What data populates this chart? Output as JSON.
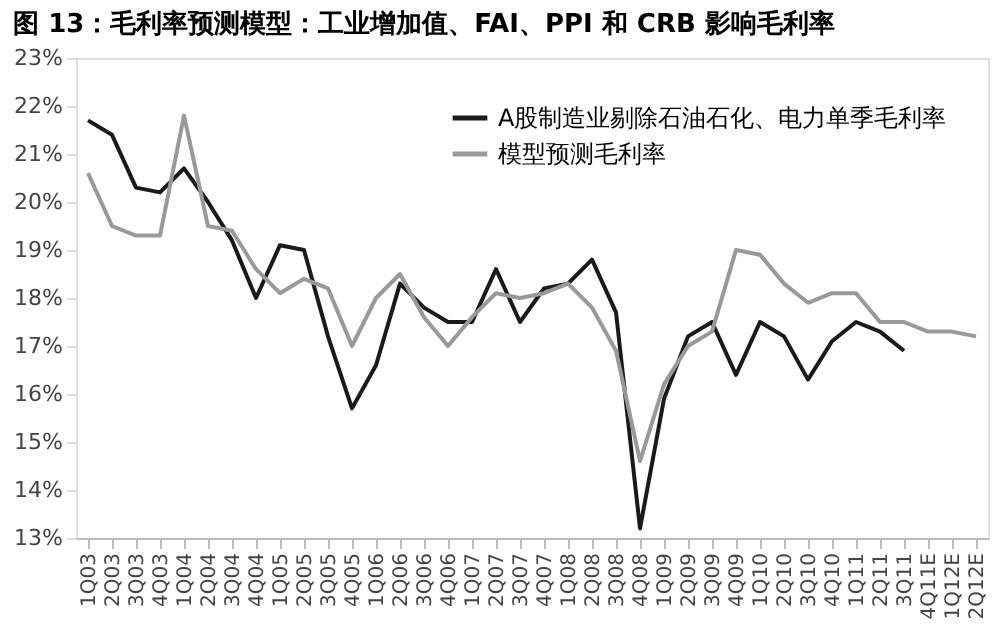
{
  "chart_data": {
    "type": "line",
    "title": "图 13：毛利率预测模型：工业增加值、FAI、PPI 和 CRB 影响毛利率",
    "categories": [
      "1Q03",
      "2Q03",
      "3Q03",
      "4Q03",
      "1Q04",
      "2Q04",
      "3Q04",
      "4Q04",
      "1Q05",
      "2Q05",
      "3Q05",
      "4Q05",
      "1Q06",
      "2Q06",
      "3Q06",
      "4Q06",
      "1Q07",
      "2Q07",
      "3Q07",
      "4Q07",
      "1Q08",
      "2Q08",
      "3Q08",
      "4Q08",
      "1Q09",
      "2Q09",
      "3Q09",
      "4Q09",
      "1Q10",
      "2Q10",
      "3Q10",
      "4Q10",
      "1Q11",
      "2Q11",
      "3Q11",
      "4Q11E",
      "1Q12E",
      "2Q12E"
    ],
    "series": [
      {
        "name": "A股制造业剔除石油石化、电力单季毛利率",
        "color": "#1a1a1a",
        "values": [
          21.7,
          21.4,
          20.3,
          20.2,
          20.7,
          20.0,
          19.2,
          18.0,
          19.1,
          19.0,
          17.2,
          15.7,
          16.6,
          18.3,
          17.8,
          17.5,
          17.5,
          18.6,
          17.5,
          18.2,
          18.3,
          18.8,
          17.7,
          13.2,
          15.9,
          17.2,
          17.5,
          16.4,
          17.5,
          17.2,
          16.3,
          17.1,
          17.5,
          17.3,
          16.9,
          null,
          null,
          null
        ]
      },
      {
        "name": "模型预测毛利率",
        "color": "#999999",
        "values": [
          20.6,
          19.5,
          19.3,
          19.3,
          21.8,
          19.5,
          19.4,
          18.6,
          18.1,
          18.4,
          18.2,
          17.0,
          18.0,
          18.5,
          17.6,
          17.0,
          17.6,
          18.1,
          18.0,
          18.1,
          18.3,
          17.8,
          16.9,
          14.6,
          16.2,
          17.0,
          17.3,
          19.0,
          18.9,
          18.3,
          17.9,
          18.1,
          18.1,
          17.5,
          17.5,
          17.3,
          17.3,
          17.2
        ]
      }
    ],
    "ylim": [
      13,
      23
    ],
    "yticks": [
      {
        "value": 13,
        "label": "13%"
      },
      {
        "value": 14,
        "label": "14%"
      },
      {
        "value": 15,
        "label": "15%"
      },
      {
        "value": 16,
        "label": "16%"
      },
      {
        "value": 17,
        "label": "17%"
      },
      {
        "value": 18,
        "label": "18%"
      },
      {
        "value": 19,
        "label": "19%"
      },
      {
        "value": 20,
        "label": "20%"
      },
      {
        "value": 21,
        "label": "21%"
      },
      {
        "value": 22,
        "label": "22%"
      },
      {
        "value": 23,
        "label": "23%"
      }
    ],
    "grid": false,
    "legend": "top right",
    "marker": "none",
    "line_style": "solid"
  }
}
